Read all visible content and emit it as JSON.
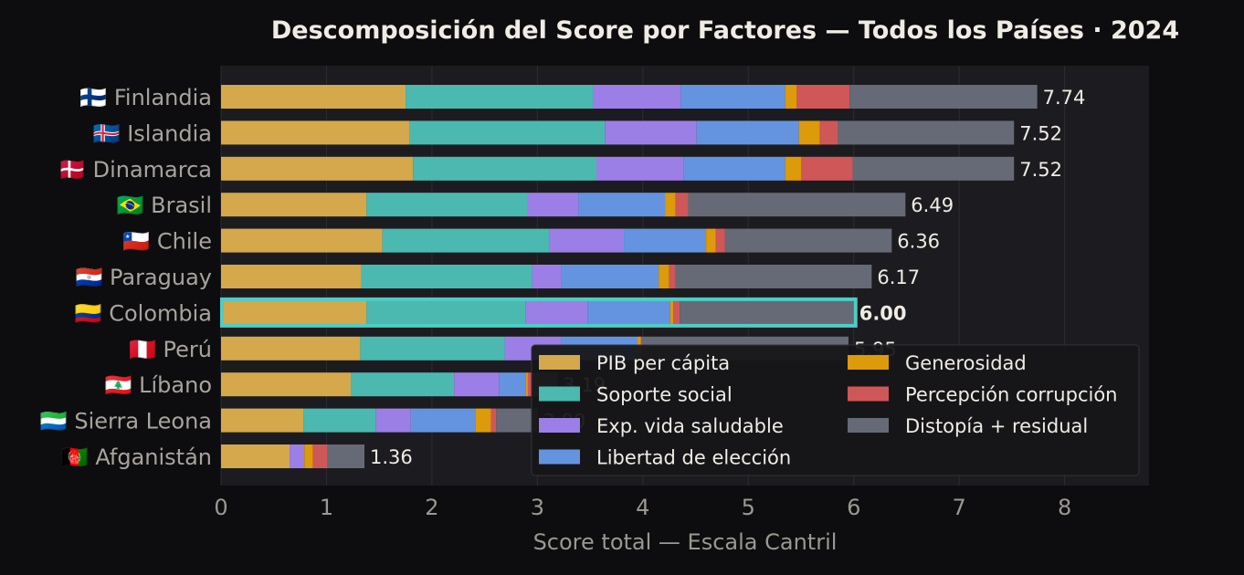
{
  "chart_data": {
    "type": "bar",
    "orientation": "horizontal",
    "stacked": true,
    "title": "Descomposición del Score por Factores — Todos los Países · 2024",
    "xlabel": "Score total — Escala Cantril",
    "ylabel": "",
    "xlim": [
      0,
      8.8
    ],
    "xticks": [
      0,
      1,
      2,
      3,
      4,
      5,
      6,
      7,
      8
    ],
    "grid": true,
    "legend_position": "lower-right",
    "highlight": "🇨🇴 Colombia",
    "highlight_color": "#4ecdc4",
    "categories": [
      "🇫🇮 Finlandia",
      "🇮🇸 Islandia",
      "🇩🇰 Dinamarca",
      "🇧🇷 Brasil",
      "🇨🇱 Chile",
      "🇵🇾 Paraguay",
      "🇨🇴 Colombia",
      "🇵🇪 Perú",
      "🇱🇧 Líbano",
      "🇸🇱 Sierra Leona",
      "🇦🇫 Afganistán"
    ],
    "totals": [
      "7.74",
      "7.52",
      "7.52",
      "6.49",
      "6.36",
      "6.17",
      "6.00",
      "5.95",
      "3.19",
      "3.00",
      "1.36"
    ],
    "series": [
      {
        "name": "PIB per cápita",
        "color": "#d4a84b",
        "values": [
          1.75,
          1.79,
          1.82,
          1.38,
          1.53,
          1.33,
          1.38,
          1.32,
          1.23,
          0.78,
          0.65
        ]
      },
      {
        "name": "Soporte social",
        "color": "#4bb9b0",
        "values": [
          1.78,
          1.85,
          1.74,
          1.53,
          1.58,
          1.62,
          1.51,
          1.37,
          0.98,
          0.69,
          0.0
        ]
      },
      {
        "name": "Exp. vida saludable",
        "color": "#9b7fe6",
        "values": [
          0.83,
          0.87,
          0.83,
          0.48,
          0.71,
          0.28,
          0.59,
          0.54,
          0.43,
          0.33,
          0.14
        ]
      },
      {
        "name": "Libertad de elección",
        "color": "#6494e0",
        "values": [
          0.99,
          0.97,
          0.96,
          0.82,
          0.78,
          0.92,
          0.78,
          0.72,
          0.25,
          0.61,
          0.0
        ]
      },
      {
        "name": "Generosidad",
        "color": "#dd9a0a",
        "values": [
          0.11,
          0.2,
          0.15,
          0.1,
          0.09,
          0.1,
          0.03,
          0.03,
          0.02,
          0.15,
          0.08
        ]
      },
      {
        "name": "Percepción corrupción",
        "color": "#cf5757",
        "values": [
          0.5,
          0.17,
          0.49,
          0.12,
          0.09,
          0.06,
          0.06,
          0.01,
          0.05,
          0.05,
          0.14
        ]
      },
      {
        "name": "Distopía + residual",
        "color": "#656a76",
        "values": [
          1.78,
          1.67,
          1.53,
          2.06,
          1.58,
          1.86,
          1.65,
          1.96,
          0.23,
          0.39,
          0.35
        ]
      }
    ]
  }
}
